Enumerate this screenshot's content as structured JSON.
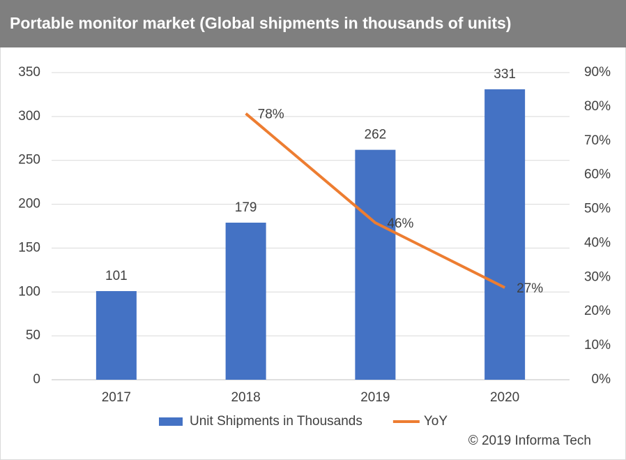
{
  "chart_data": {
    "type": "bar",
    "title": "Portable monitor market (Global shipments in thousands of units)",
    "categories": [
      "2017",
      "2018",
      "2019",
      "2020"
    ],
    "series": [
      {
        "name": "Unit Shipments in Thousands",
        "type": "bar",
        "color": "#4472c4",
        "values": [
          101,
          179,
          262,
          331
        ]
      },
      {
        "name": "YoY",
        "type": "line",
        "axis": "y2",
        "color": "#ed7d31",
        "values": [
          null,
          78,
          46,
          27
        ],
        "value_labels": [
          null,
          "78%",
          "46%",
          "27%"
        ]
      }
    ],
    "ylim": [
      0,
      350
    ],
    "yticks": [
      0,
      50,
      100,
      150,
      200,
      250,
      300,
      350
    ],
    "y2lim": [
      0,
      90
    ],
    "y2ticks": [
      {
        "value": 0,
        "label": "0%"
      },
      {
        "value": 10,
        "label": "10%"
      },
      {
        "value": 20,
        "label": "20%"
      },
      {
        "value": 30,
        "label": "30%"
      },
      {
        "value": 40,
        "label": "40%"
      },
      {
        "value": 50,
        "label": "50%"
      },
      {
        "value": 60,
        "label": "60%"
      },
      {
        "value": 70,
        "label": "70%"
      },
      {
        "value": 80,
        "label": "80%"
      },
      {
        "value": 90,
        "label": "90%"
      }
    ],
    "grid": true,
    "legend": "bottom",
    "source": "© 2019 Informa Tech"
  }
}
